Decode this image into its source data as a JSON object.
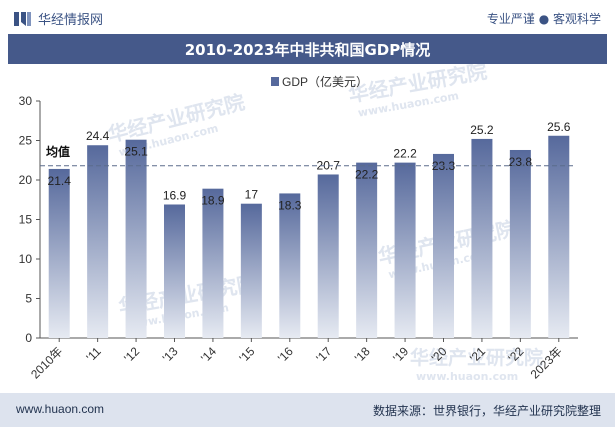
{
  "header": {
    "brand": "华经情报网",
    "tagline": "专业严谨 ● 客观科学"
  },
  "footer": {
    "website": "www.huaon.com",
    "source": "数据来源：世界银行，华经产业研究院整理"
  },
  "watermark": {
    "text": "华经产业研究院",
    "url": "www.huaon.com"
  },
  "colors": {
    "bar_top": "#56699c",
    "bar_bottom": "#e6eaf2",
    "title_bg": "#45598a",
    "avg_line": "#5b6c8c"
  },
  "chart_data": {
    "type": "bar",
    "title": "2010-2023年中非共和国GDP情况",
    "legend": [
      "GDP（亿美元）"
    ],
    "legend_placement": "top-center",
    "categories": [
      "2010年",
      "'11",
      "'12",
      "'13",
      "'14",
      "'15",
      "'16",
      "'17",
      "'18",
      "'19",
      "'20",
      "'21",
      "'22",
      "2023年"
    ],
    "series": [
      {
        "name": "GDP（亿美元）",
        "values": [
          21.4,
          24.4,
          25.1,
          16.9,
          18.9,
          17,
          18.3,
          20.7,
          22.2,
          22.2,
          23.3,
          25.2,
          23.8,
          25.6
        ]
      }
    ],
    "value_labels": [
      "21.4",
      "24.4",
      "25.1",
      "16.9",
      "18.9",
      "17",
      "18.3",
      "20.7",
      "22.2",
      "22.2",
      "23.3",
      "25.2",
      "23.8",
      "25.6"
    ],
    "ylim": [
      0,
      30
    ],
    "yticks": [
      0,
      5,
      10,
      15,
      20,
      25,
      30
    ],
    "reference_line": {
      "label": "均值",
      "value": 21.8
    },
    "grid": false
  }
}
